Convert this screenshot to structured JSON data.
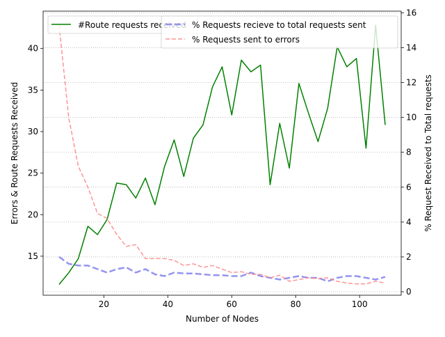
{
  "chart_data": {
    "type": "line",
    "title": "",
    "xlabel": "Number of Nodes",
    "ylabel_left": "Errors & Route Requests Received",
    "ylabel_right": "% Request Received to Total requests",
    "xlim": [
      1,
      113
    ],
    "ylim_left": [
      10.3,
      44.5
    ],
    "ylim_right": [
      -0.2,
      16.1
    ],
    "x_ticks": [
      20,
      40,
      60,
      80,
      100
    ],
    "y_left_ticks": [
      15,
      20,
      25,
      30,
      35,
      40
    ],
    "y_right_ticks": [
      0,
      2,
      4,
      6,
      8,
      10,
      12,
      14,
      16
    ],
    "grid": "horizontal dotted lines at the right-axis ticks",
    "x": [
      6,
      9,
      12,
      15,
      18,
      21,
      24,
      27,
      30,
      33,
      36,
      39,
      42,
      45,
      48,
      51,
      54,
      57,
      60,
      63,
      66,
      69,
      72,
      75,
      78,
      81,
      84,
      87,
      90,
      93,
      96,
      99,
      102,
      105,
      108
    ],
    "series": [
      {
        "name": "#Route requests received",
        "axis": "left",
        "color": "#008000",
        "style": "solid",
        "values": [
          11.6,
          13.0,
          14.7,
          18.6,
          17.6,
          19.4,
          23.8,
          23.6,
          22.0,
          24.4,
          21.2,
          25.8,
          29.0,
          24.6,
          29.2,
          30.8,
          35.4,
          37.8,
          32.0,
          38.6,
          37.2,
          38.0,
          23.6,
          31.0,
          25.6,
          35.8,
          32.2,
          28.8,
          32.8,
          40.2,
          37.8,
          38.8,
          28.0,
          42.8,
          30.8
        ]
      },
      {
        "name": "% Requests recieve to total requests sent",
        "axis": "right",
        "color": "#8888ee",
        "style": "dashed",
        "values": [
          2.0,
          1.6,
          1.5,
          1.5,
          1.3,
          1.1,
          1.3,
          1.4,
          1.1,
          1.3,
          1.0,
          0.9,
          1.1,
          1.05,
          1.05,
          1.0,
          0.95,
          0.95,
          0.9,
          0.9,
          1.1,
          0.9,
          0.8,
          0.7,
          0.8,
          0.9,
          0.8,
          0.8,
          0.6,
          0.8,
          0.9,
          0.9,
          0.8,
          0.7,
          0.85
        ]
      },
      {
        "name": "% Requests sent to errors",
        "axis": "right",
        "color": "#ff8888",
        "style": "dashed",
        "values": [
          15.3,
          10.0,
          7.2,
          6.0,
          4.5,
          4.2,
          3.3,
          2.6,
          2.7,
          1.9,
          1.9,
          1.9,
          1.8,
          1.5,
          1.6,
          1.4,
          1.5,
          1.3,
          1.1,
          1.15,
          1.0,
          1.0,
          0.8,
          0.95,
          0.6,
          0.7,
          0.8,
          0.75,
          0.8,
          0.6,
          0.5,
          0.45,
          0.45,
          0.6,
          0.5
        ]
      }
    ],
    "legend": [
      {
        "label": "#Route requests received",
        "placement": "upper-left"
      },
      {
        "label": "% Requests recieve to total requests sent",
        "placement": "upper-center"
      },
      {
        "label": "% Requests sent to errors",
        "placement": "upper-center"
      }
    ]
  }
}
